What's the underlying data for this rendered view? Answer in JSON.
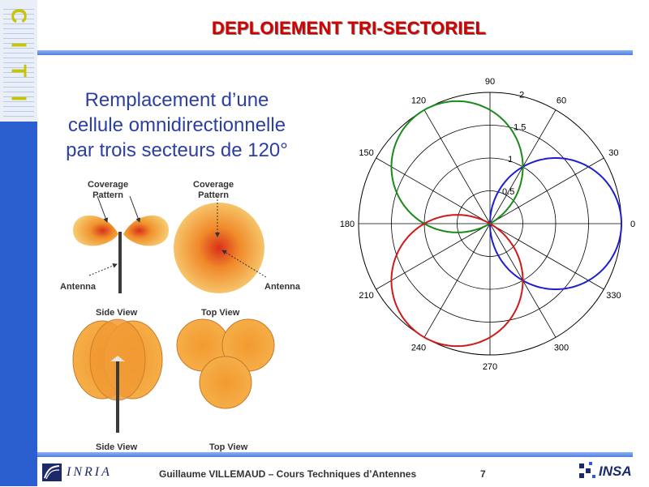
{
  "slide": {
    "title": "DEPLOIEMENT TRI-SECTORIEL",
    "subtitle_lines": [
      "Remplacement d’une",
      "cellule omnidirectionnelle",
      "par trois secteurs de 120°"
    ],
    "page_number": "7"
  },
  "sidebar": {
    "logo_letters": [
      "C",
      "I",
      "T",
      "I"
    ]
  },
  "figure": {
    "labels": {
      "coverage_left": "Coverage\nPattern",
      "coverage_right": "Coverage\nPattern",
      "antenna_left": "Antenna",
      "antenna_right": "Antenna",
      "side_view_top": "Side View",
      "top_view_top": "Top View",
      "side_view_bottom": "Side View",
      "top_view_bottom": "Top View"
    }
  },
  "polar": {
    "angle_labels": [
      "0",
      "30",
      "60",
      "90",
      "120",
      "150",
      "180",
      "210",
      "240",
      "270",
      "300",
      "330"
    ],
    "radial_labels": [
      "0.5",
      "1",
      "1.5",
      "2"
    ],
    "rmax": 2,
    "series": [
      {
        "center_deg": 0,
        "color": "#1f1fd0"
      },
      {
        "center_deg": 120,
        "color": "#1a8a1a"
      },
      {
        "center_deg": 240,
        "color": "#d01a1a"
      }
    ]
  },
  "footer": {
    "inria_text": "INRIA",
    "author_text": "Guillaume VILLEMAUD – Cours Techniques d’Antennes",
    "insa_text": "INSA"
  },
  "colors": {
    "title": "#d40000",
    "subtitle": "#2c3fa4",
    "band": "#2b5fd0"
  }
}
